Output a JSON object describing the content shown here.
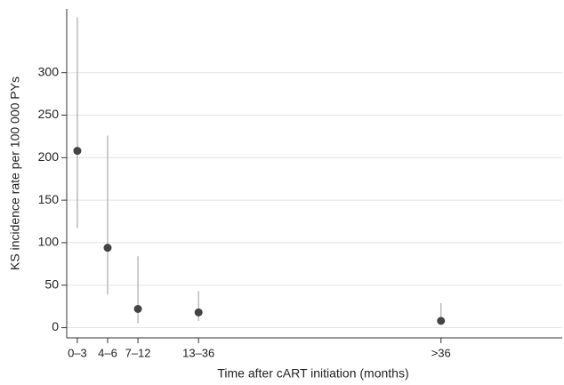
{
  "chart_data": {
    "type": "errorbar",
    "x_label": "Time after cART initiation (months)",
    "y_label": "KS incidence rate per 100 000 PYs",
    "x": [
      1,
      2,
      3,
      5,
      13
    ],
    "series": [
      {
        "color": "#444444",
        "values": [
          208,
          94,
          22,
          18,
          8
        ],
        "lower": [
          117,
          39,
          5,
          8,
          5
        ],
        "upper": [
          365,
          226,
          84,
          43,
          29
        ]
      }
    ],
    "xlim": [
      0.65,
      17
    ],
    "xticks": [
      {
        "value": 1,
        "label": "0–3"
      },
      {
        "value": 2,
        "label": "4–6"
      },
      {
        "value": 3,
        "label": "7–12"
      },
      {
        "value": 5,
        "label": "13–36"
      },
      {
        "value": 13,
        "label": ">36"
      }
    ],
    "ylim": [
      -12,
      375
    ],
    "yticks": [
      0,
      50,
      100,
      150,
      200,
      250,
      300
    ],
    "grid": true
  }
}
